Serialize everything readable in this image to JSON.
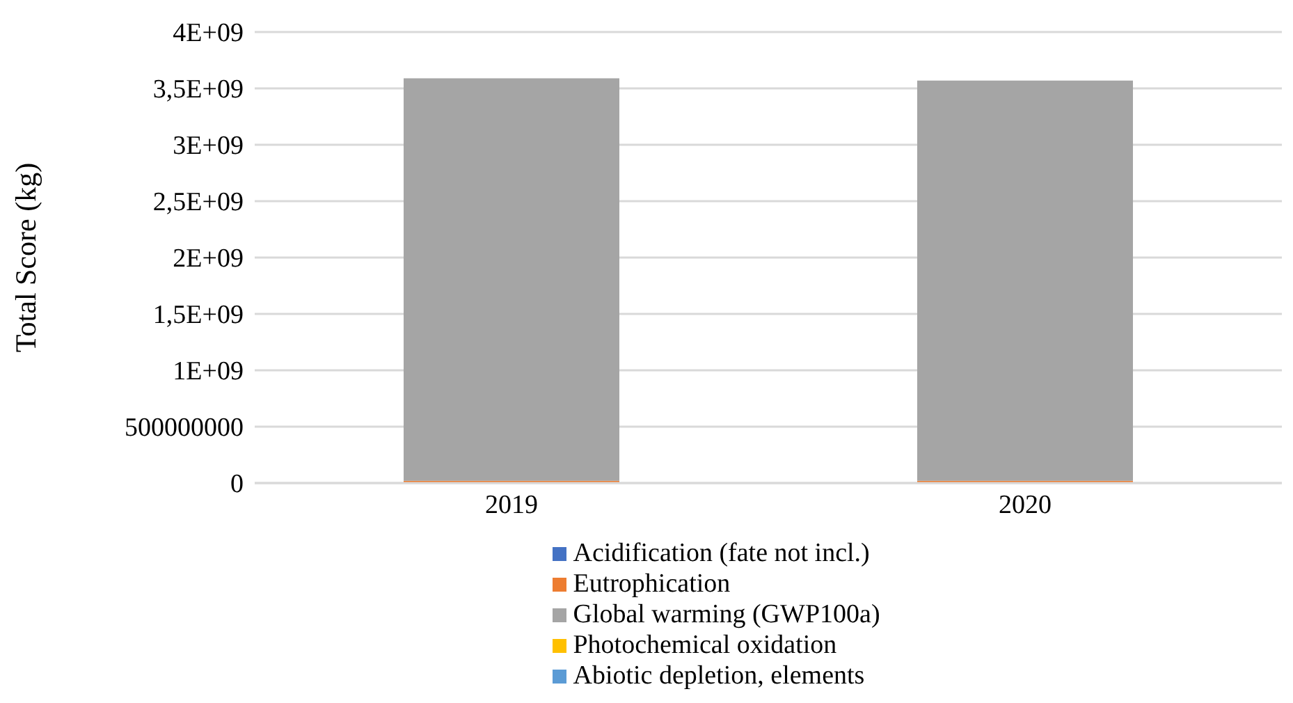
{
  "chart_data": {
    "type": "bar",
    "stacked": true,
    "ylabel": "Total Score (kg)",
    "categories": [
      "2019",
      "2020"
    ],
    "series": [
      {
        "name": "Acidification (fate not incl.)",
        "color": "#4472c4",
        "values": [
          0,
          0
        ]
      },
      {
        "name": "Eutrophication",
        "color": "#ed7d31",
        "values": [
          20000000,
          20000000
        ]
      },
      {
        "name": "Global warming (GWP100a)",
        "color": "#a5a5a5",
        "values": [
          3570000000,
          3550000000
        ]
      },
      {
        "name": "Photochemical oxidation",
        "color": "#ffc000",
        "values": [
          0,
          0
        ]
      },
      {
        "name": "Abiotic depletion, elements",
        "color": "#5b9bd5",
        "values": [
          0,
          0
        ]
      }
    ],
    "ylim": [
      0,
      4000000000
    ],
    "yticks": [
      0,
      500000000,
      {
        "value": 1000000000,
        "label": "1E+09"
      },
      {
        "value": 1500000000,
        "label": "1,5E+09"
      },
      {
        "value": 2000000000,
        "label": "2E+09"
      },
      {
        "value": 2500000000,
        "label": "2,5E+09"
      },
      {
        "value": 3000000000,
        "label": "3E+09"
      },
      {
        "value": 3500000000,
        "label": "3,5E+09"
      },
      {
        "value": 4000000000,
        "label": "4E+09"
      }
    ],
    "grid": "y",
    "legend": "bottom"
  }
}
